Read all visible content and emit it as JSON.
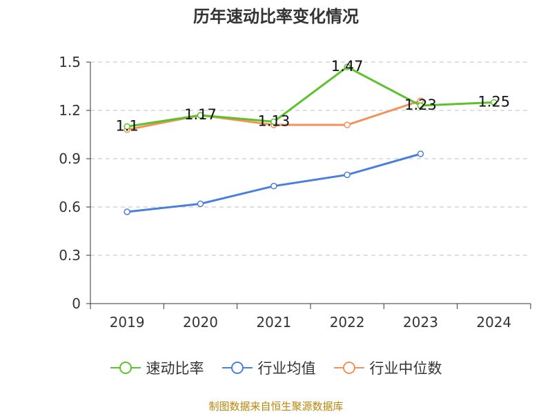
{
  "chart_data": {
    "type": "line",
    "title": "历年速动比率变化情况",
    "categories": [
      "2019",
      "2020",
      "2021",
      "2022",
      "2023",
      "2024"
    ],
    "y_ticks": [
      "0",
      "0.3",
      "0.6",
      "0.9",
      "1.2",
      "1.5"
    ],
    "ylim": [
      0,
      1.5
    ],
    "grid": true,
    "legend_position": "bottom",
    "series": [
      {
        "name": "速动比率",
        "color": "#5cc22b",
        "values": [
          1.1,
          1.17,
          1.13,
          1.47,
          1.23,
          1.25
        ],
        "labels": [
          "1.1",
          "1.17",
          "1.13",
          "1.47",
          "1.23",
          "1.25"
        ]
      },
      {
        "name": "行业均值",
        "color": "#4a7fdc",
        "values": [
          0.57,
          0.62,
          0.73,
          0.8,
          0.93,
          null
        ]
      },
      {
        "name": "行业中位数",
        "color": "#f59058",
        "values": [
          1.08,
          1.17,
          1.11,
          1.11,
          1.26,
          null
        ]
      }
    ]
  },
  "source": "制图数据来自恒生聚源数据库"
}
